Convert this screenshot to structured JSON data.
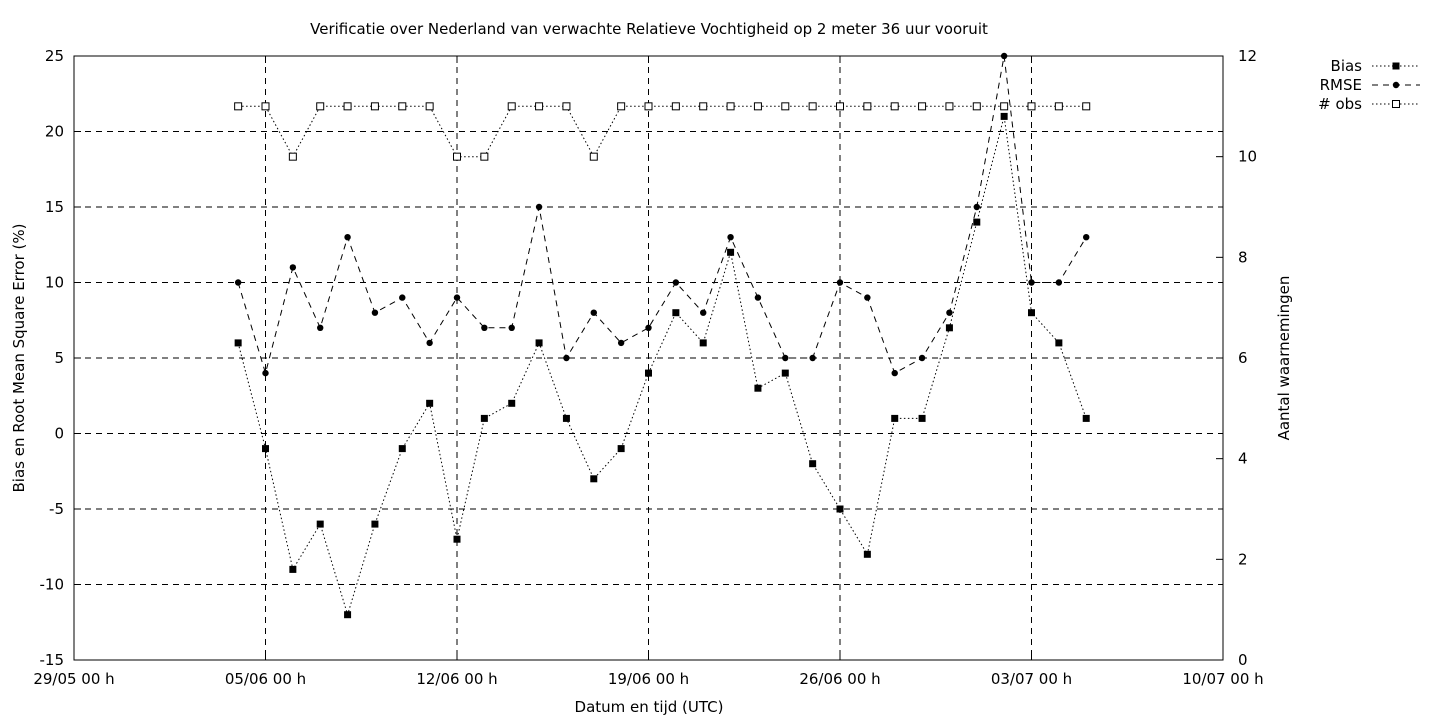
{
  "chart_data": {
    "type": "line",
    "title": "Verificatie over Nederland van verwachte Relatieve Vochtigheid op 2 meter 36 uur vooruit",
    "xlabel": "Datum en tijd (UTC)",
    "ylabel": "Bias en Root Mean Square Error (%)",
    "y2label": "Aantal waarnemingen",
    "xlim": [
      "2023-05-29",
      "2023-07-10"
    ],
    "ylim": [
      -15,
      25
    ],
    "y2lim": [
      0,
      12
    ],
    "x_ticks": [
      {
        "date": "2023-05-29",
        "label": "29/05 00 h"
      },
      {
        "date": "2023-06-05",
        "label": "05/06 00 h"
      },
      {
        "date": "2023-06-12",
        "label": "12/06 00 h"
      },
      {
        "date": "2023-06-19",
        "label": "19/06 00 h"
      },
      {
        "date": "2023-06-26",
        "label": "26/06 00 h"
      },
      {
        "date": "2023-07-03",
        "label": "03/07 00 h"
      },
      {
        "date": "2023-07-10",
        "label": "10/07 00 h"
      }
    ],
    "y_ticks": [
      "25",
      "20",
      "15",
      "10",
      "5",
      "0",
      "-5",
      "-10",
      "-15"
    ],
    "y2_ticks": [
      "12",
      "10",
      "8",
      "6",
      "4",
      "2",
      "0"
    ],
    "grid": true,
    "legend_position": "top-right outside",
    "x": [
      "2023-06-04T00:00",
      "2023-06-05T00:00",
      "2023-06-06T00:00",
      "2023-06-07T00:00",
      "2023-06-08T00:00",
      "2023-06-09T00:00",
      "2023-06-10T00:00",
      "2023-06-11T00:00",
      "2023-06-12T00:00",
      "2023-06-13T00:00",
      "2023-06-14T00:00",
      "2023-06-15T00:00",
      "2023-06-16T00:00",
      "2023-06-17T00:00",
      "2023-06-18T00:00",
      "2023-06-19T00:00",
      "2023-06-20T00:00",
      "2023-06-21T00:00",
      "2023-06-22T00:00",
      "2023-06-23T00:00",
      "2023-06-24T00:00",
      "2023-06-25T00:00",
      "2023-06-26T00:00",
      "2023-06-27T00:00",
      "2023-06-28T00:00",
      "2023-06-29T00:00",
      "2023-06-30T00:00",
      "2023-07-01T00:00",
      "2023-07-02T00:00",
      "2023-07-03T00:00",
      "2023-07-04T00:00",
      "2023-07-05T00:00"
    ],
    "series": [
      {
        "name": "Bias",
        "axis": "left",
        "marker": "filled-square",
        "dash": "dotted",
        "values": [
          6,
          -1,
          -9,
          -6,
          -12,
          -6,
          -1,
          2,
          -7,
          1,
          2,
          6,
          1,
          -3,
          -1,
          4,
          8,
          6,
          12,
          3,
          4,
          -2,
          -5,
          -8,
          1,
          1,
          7,
          14,
          21,
          8,
          6,
          1
        ]
      },
      {
        "name": "RMSE",
        "axis": "left",
        "marker": "filled-circle",
        "dash": "dashed",
        "values": [
          10,
          4,
          11,
          7,
          13,
          8,
          9,
          6,
          9,
          7,
          7,
          15,
          5,
          8,
          6,
          7,
          10,
          8,
          13,
          9,
          5,
          5,
          10,
          9,
          4,
          5,
          8,
          15,
          25,
          10,
          10,
          13
        ]
      },
      {
        "name": "# obs",
        "axis": "right",
        "marker": "open-square",
        "dash": "dotted",
        "values": [
          11,
          11,
          10,
          11,
          11,
          11,
          11,
          11,
          10,
          10,
          11,
          11,
          11,
          10,
          11,
          11,
          11,
          11,
          11,
          11,
          11,
          11,
          11,
          11,
          11,
          11,
          11,
          11,
          11,
          11,
          11,
          11
        ]
      }
    ]
  }
}
